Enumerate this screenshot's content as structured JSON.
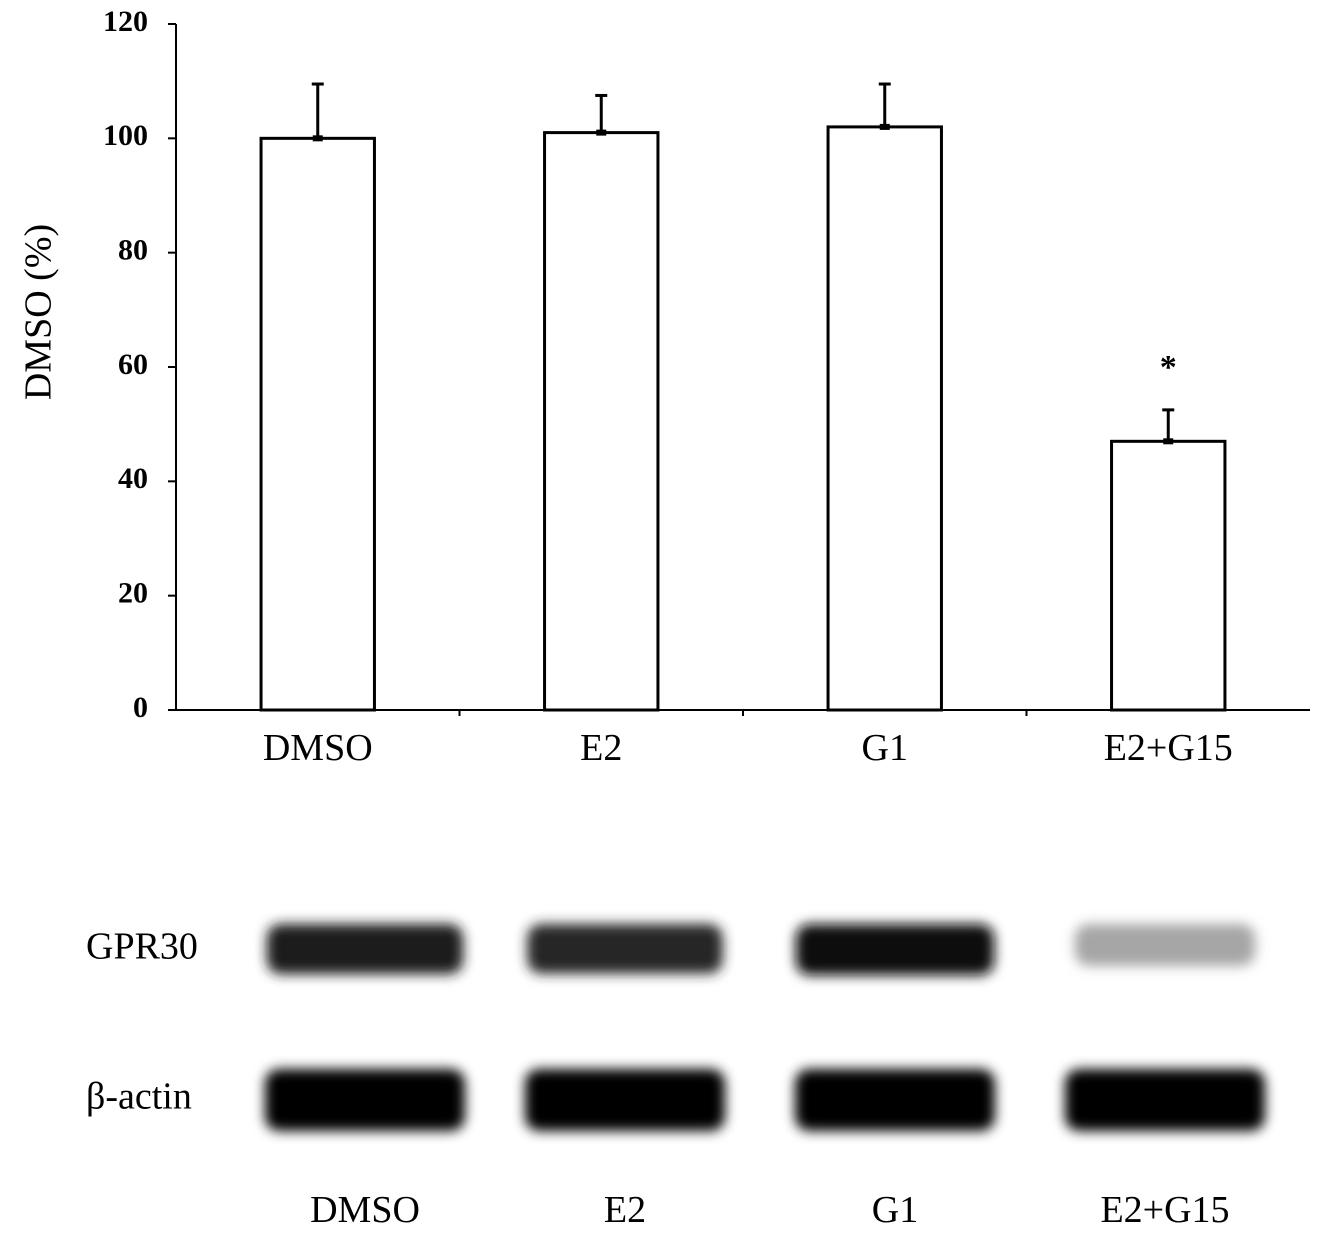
{
  "chart_data": {
    "type": "bar",
    "ylabel": "DMSO (%)",
    "xlabel": "",
    "categories": [
      "DMSO",
      "E2",
      "G1",
      "E2+G15"
    ],
    "values": [
      100,
      101,
      102,
      47
    ],
    "errors": [
      9.5,
      6.5,
      7.5,
      5.5
    ],
    "ylim": [
      0,
      120
    ],
    "yticks": [
      0,
      20,
      40,
      60,
      80,
      100,
      120
    ],
    "annotations": [
      {
        "category": "E2+G15",
        "text": "*"
      }
    ],
    "grid": false,
    "bar_fill": "#ffffff",
    "bar_edge": "#000000"
  },
  "blot": {
    "rows": [
      {
        "label": "GPR30",
        "intensities": [
          0.88,
          0.85,
          0.95,
          0.35
        ]
      },
      {
        "label": "β-actin",
        "intensities": [
          1.0,
          1.0,
          1.0,
          1.0
        ]
      }
    ],
    "lanes": [
      "DMSO",
      "E2",
      "G1",
      "E2+G15"
    ]
  }
}
